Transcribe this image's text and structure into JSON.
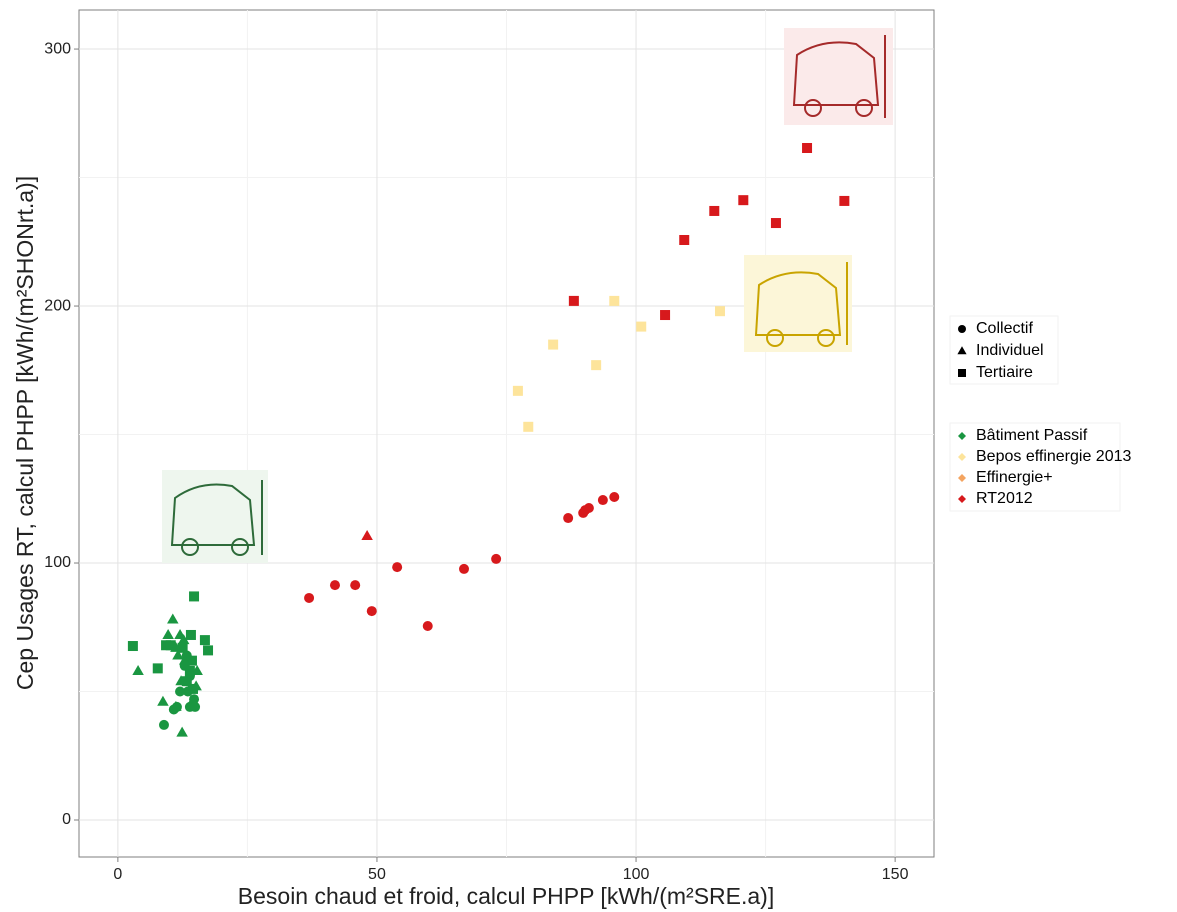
{
  "chart_data": {
    "type": "scatter",
    "x_label": "Besoin chaud et froid, calcul PHPP [kWh/(m²SRE.a)]",
    "y_label": "Cep Usages RT, calcul PHPP [kWh/(m²SHONrt.a)]",
    "xlim": [
      -7.5,
      157.5
    ],
    "ylim": [
      -14.4,
      315.2
    ],
    "xticks": [
      0,
      50,
      100,
      150
    ],
    "yticks": [
      0,
      100,
      200,
      300
    ],
    "xminor": [
      25,
      75,
      125
    ],
    "yminor": [
      50,
      150,
      250
    ],
    "grid": true,
    "legend": "right",
    "shapes": [
      {
        "name": "Collectif",
        "marker": "circle"
      },
      {
        "name": "Individuel",
        "marker": "triangle"
      },
      {
        "name": "Tertiaire",
        "marker": "square"
      }
    ],
    "series": [
      {
        "name": "Bâtiment Passif",
        "color": "#1a9641",
        "x": [
          2.9,
          7.7,
          14.7,
          9.3,
          10.2,
          14.1,
          16.8,
          17.4,
          12.5,
          14.3,
          13.9,
          14.5,
          13.3,
          3.9,
          10.6,
          9.7,
          12,
          12.7,
          11.2,
          11.6,
          12.9,
          15.3,
          12.2,
          8.7,
          11.2,
          12.4,
          15.1,
          8.9,
          10.8,
          12,
          13.9,
          14.5,
          13.5,
          13.3,
          12.9,
          13.9,
          14.7,
          11.4,
          14.9
        ],
        "y": [
          67.7,
          59,
          87,
          68,
          68,
          72,
          70,
          66,
          67,
          62,
          58,
          51,
          54,
          58,
          78,
          72,
          72,
          70,
          67,
          64,
          62,
          58,
          54,
          46,
          44,
          34,
          52,
          37,
          43,
          50,
          44,
          45,
          50,
          64,
          60,
          56,
          47,
          44,
          44
        ],
        "shape": [
          2,
          2,
          2,
          2,
          2,
          2,
          2,
          2,
          2,
          2,
          2,
          2,
          2,
          1,
          1,
          1,
          1,
          1,
          1,
          1,
          1,
          1,
          1,
          1,
          1,
          1,
          1,
          0,
          0,
          0,
          0,
          0,
          0,
          0,
          0,
          0,
          0,
          0,
          0
        ]
      },
      {
        "name": "Bepos effinergie 2013",
        "color": "#fde49b",
        "x": [
          77.2,
          79.2,
          84,
          92.3,
          95.8,
          101,
          116.2
        ],
        "y": [
          167,
          153,
          185,
          177,
          202,
          192,
          198
        ],
        "shape": [
          2,
          2,
          2,
          2,
          2,
          2,
          2
        ]
      },
      {
        "name": "Effinergie+",
        "color": "#f4a460",
        "x": [],
        "y": [],
        "shape": []
      },
      {
        "name": "RT2012",
        "color": "#d7191c",
        "x": [
          36.9,
          41.9,
          45.8,
          49,
          53.9,
          59.8,
          66.8,
          73,
          86.9,
          89.8,
          90.2,
          90.9,
          93.6,
          95.8,
          48.1,
          88,
          105.6,
          109.3,
          115.1,
          120.7,
          127,
          133,
          140.2
        ],
        "y": [
          86.4,
          91.4,
          91.4,
          81.3,
          98.4,
          75.5,
          97.7,
          101.6,
          117.5,
          119.5,
          120.6,
          121.4,
          124.5,
          125.7,
          110.5,
          202,
          196.5,
          225.7,
          237,
          241.2,
          232.3,
          261.5,
          240.9
        ],
        "shape": [
          0,
          0,
          0,
          0,
          0,
          0,
          0,
          0,
          0,
          0,
          0,
          0,
          0,
          0,
          1,
          2,
          2,
          2,
          2,
          2,
          2,
          2,
          2
        ]
      }
    ]
  }
}
